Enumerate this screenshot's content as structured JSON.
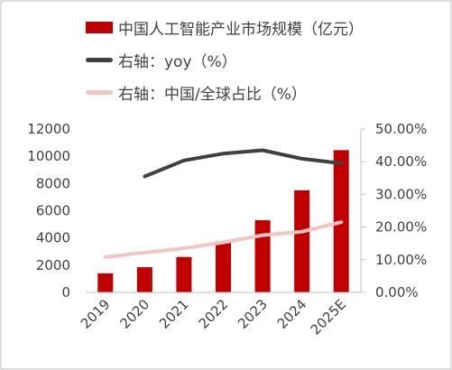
{
  "chart_data": {
    "type": "bar+line",
    "categories": [
      "2019",
      "2020",
      "2021",
      "2022",
      "2023",
      "2024",
      "2025E"
    ],
    "bar_series": {
      "name": "中国人工智能产业市场规模（亿元）",
      "axis": "left",
      "color": "#c00000",
      "values": [
        1400,
        1850,
        2600,
        3750,
        5300,
        7500,
        10450
      ]
    },
    "line_series": [
      {
        "name": "右轴：yoy（%）",
        "axis": "right",
        "color": "#404040",
        "values": [
          null,
          35.5,
          40.4,
          42.5,
          43.5,
          40.9,
          39.5
        ]
      },
      {
        "name": "右轴：中国/全球占比（%）",
        "axis": "right",
        "color": "#f2c4c4",
        "values": [
          10.8,
          12.2,
          13.5,
          15.3,
          17.5,
          18.6,
          21.5
        ]
      }
    ],
    "left_axis": {
      "min": 0,
      "max": 12000,
      "ticks": [
        "0",
        "2000",
        "4000",
        "6000",
        "8000",
        "10000",
        "12000"
      ]
    },
    "right_axis": {
      "min": 0,
      "max": 50,
      "ticks": [
        "0.00%",
        "10.00%",
        "20.00%",
        "30.00%",
        "40.00%",
        "50.00%"
      ]
    },
    "grid": false,
    "legend_position": "top"
  }
}
